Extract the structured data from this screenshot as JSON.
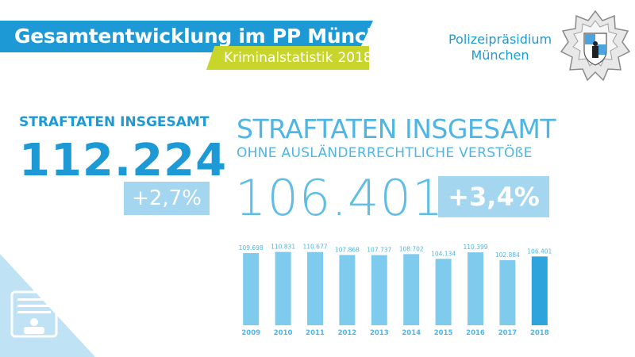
{
  "header": {
    "title": "Gesamtentwicklung im PP München",
    "subtitle": "Kriminalstatistik",
    "year": "2018"
  },
  "org": {
    "line1": "Polizeipräsidium",
    "line2": "München"
  },
  "left": {
    "label": "STRAFTATEN INSGESAMT",
    "value": "112.224",
    "change": "+2,7%"
  },
  "right": {
    "heading": "STRAFTATEN INSGESAMT",
    "subheading": "OHNE AUSLÄNDERRECHTLICHE VERSTÖßE",
    "value": "106.401",
    "change": "+3,4%"
  },
  "colors": {
    "blue": "#1d9ad6",
    "light_blue": "#4fb5e4",
    "bar_light": "#7fcbee",
    "bar_dark": "#2ea3dc",
    "lime": "#c8d62b"
  },
  "chart_data": {
    "type": "bar",
    "title": "",
    "categories": [
      "2009",
      "2010",
      "2011",
      "2012",
      "2013",
      "2014",
      "2015",
      "2016",
      "2017",
      "2018"
    ],
    "values": [
      109698,
      110831,
      110677,
      107868,
      107737,
      108702,
      104134,
      110399,
      102884,
      106401
    ],
    "labels": [
      "109.698",
      "110.831",
      "110.677",
      "107.868",
      "107.737",
      "108.702",
      "104.134",
      "110.399",
      "102.884",
      "106.401"
    ],
    "xlabel": "",
    "ylabel": "",
    "ylim": [
      40000,
      112000
    ],
    "grid": false
  }
}
